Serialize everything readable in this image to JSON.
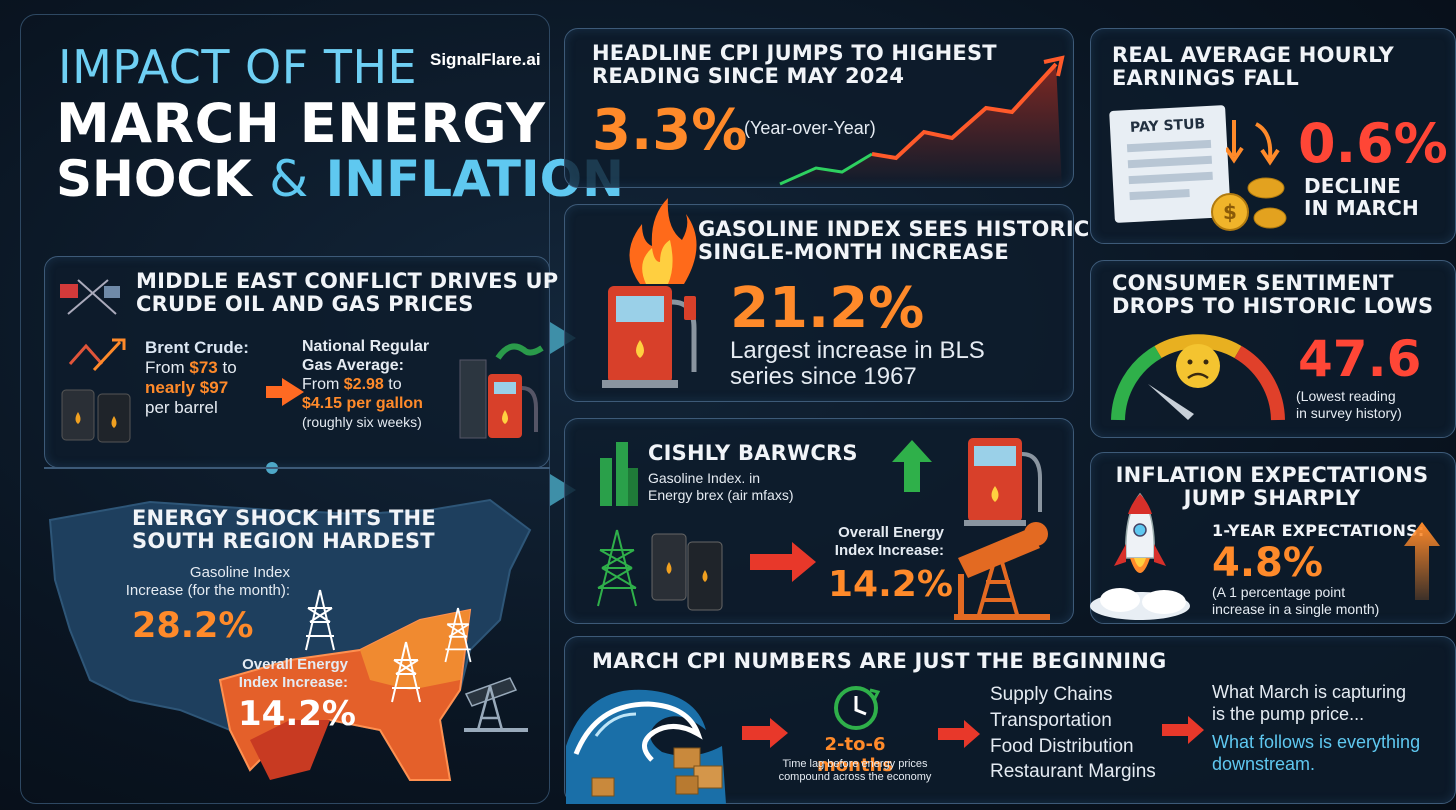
{
  "title": {
    "line1": "IMPACT OF THE",
    "line2": "MARCH ENERGY",
    "line3a": "SHOCK",
    "line3b": "&",
    "line3c": "INFLATION",
    "brand": "SignalFlare.ai"
  },
  "middle_east": {
    "heading_line1": "MIDDLE EAST CONFLICT DRIVES UP",
    "heading_line2": "CRUDE OIL AND GAS PRICES",
    "brent_label": "Brent Crude:",
    "brent_from": "From ",
    "brent_from_val": "$73",
    "brent_to": " to",
    "brent_nearly": "nearly $97",
    "brent_unit": "per barrel",
    "gas_label1": "National Regular",
    "gas_label2": "Gas Average:",
    "gas_from": "From ",
    "gas_from_val": "$2.98",
    "gas_to": " to",
    "gas_to_val": "$4.15 per gallon",
    "gas_note": "(roughly six weeks)"
  },
  "south": {
    "heading_line1": "ENERGY SHOCK HITS THE",
    "heading_line2": "SOUTH REGION HARDEST",
    "gas_label1": "Gasoline Index",
    "gas_label2": "Increase (for the month):",
    "gas_value": "28.2%",
    "energy_label1": "Overall Energy",
    "energy_label2": "Index Increase:",
    "energy_value": "14.2%"
  },
  "cpi": {
    "heading_line1": "HEADLINE CPI JUMPS TO HIGHEST",
    "heading_line2": "READING SINCE MAY 2024",
    "value": "3.3%",
    "note": "(Year-over-Year)"
  },
  "gasoline": {
    "heading_line1": "GASOLINE INDEX SEES HISTORIC",
    "heading_line2": "SINGLE-MONTH INCREASE",
    "value": "21.2%",
    "note_line1": "Largest increase in BLS",
    "note_line2": "series since 1967"
  },
  "energy_mid": {
    "heading": "CISHLY BARWCRS",
    "sub_line1": "Gasoline Index. in",
    "sub_line2": "Energy brex (air mfaxs)",
    "label_line1": "Overall Energy",
    "label_line2": "Index Increase:",
    "value": "14.2%"
  },
  "earnings": {
    "heading_line1": "REAL AVERAGE HOURLY",
    "heading_line2": "EARNINGS FALL",
    "stub_label": "PAY STUB",
    "value": "0.6%",
    "note_line1": "DECLINE",
    "note_line2": "IN MARCH"
  },
  "sentiment": {
    "heading_line1": "CONSUMER SENTIMENT",
    "heading_line2": "DROPS TO HISTORIC LOWS",
    "value": "47.6",
    "note_line1": "(Lowest reading",
    "note_line2": "in survey history)"
  },
  "expectations": {
    "heading_line1": "INFLATION EXPECTATIONS",
    "heading_line2": "JUMP SHARPLY",
    "label": "1-YEAR EXPECTATIONS:",
    "value": "4.8%",
    "note_line1": "(A 1 percentage point",
    "note_line2": "increase in a single month)"
  },
  "beginning": {
    "heading": "MARCH CPI NUMBERS ARE JUST THE BEGINNING",
    "lag_value": "2-to-6 months",
    "lag_note_line1": "Time lag before energy prices",
    "lag_note_line2": "compound across the economy",
    "chain": [
      "Supply Chains",
      "Transportation",
      "Food Distribution",
      "Restaurant Margins"
    ],
    "final_line1": "What March is capturing",
    "final_line2": "is the pump price...",
    "final_line3": "What follows is everything",
    "final_line4": "downstream."
  },
  "colors": {
    "accent_orange": "#ff8a2a",
    "accent_red": "#ff4d2e",
    "accent_cyan": "#5fc8f0",
    "panel_border": "#3d5a78"
  }
}
